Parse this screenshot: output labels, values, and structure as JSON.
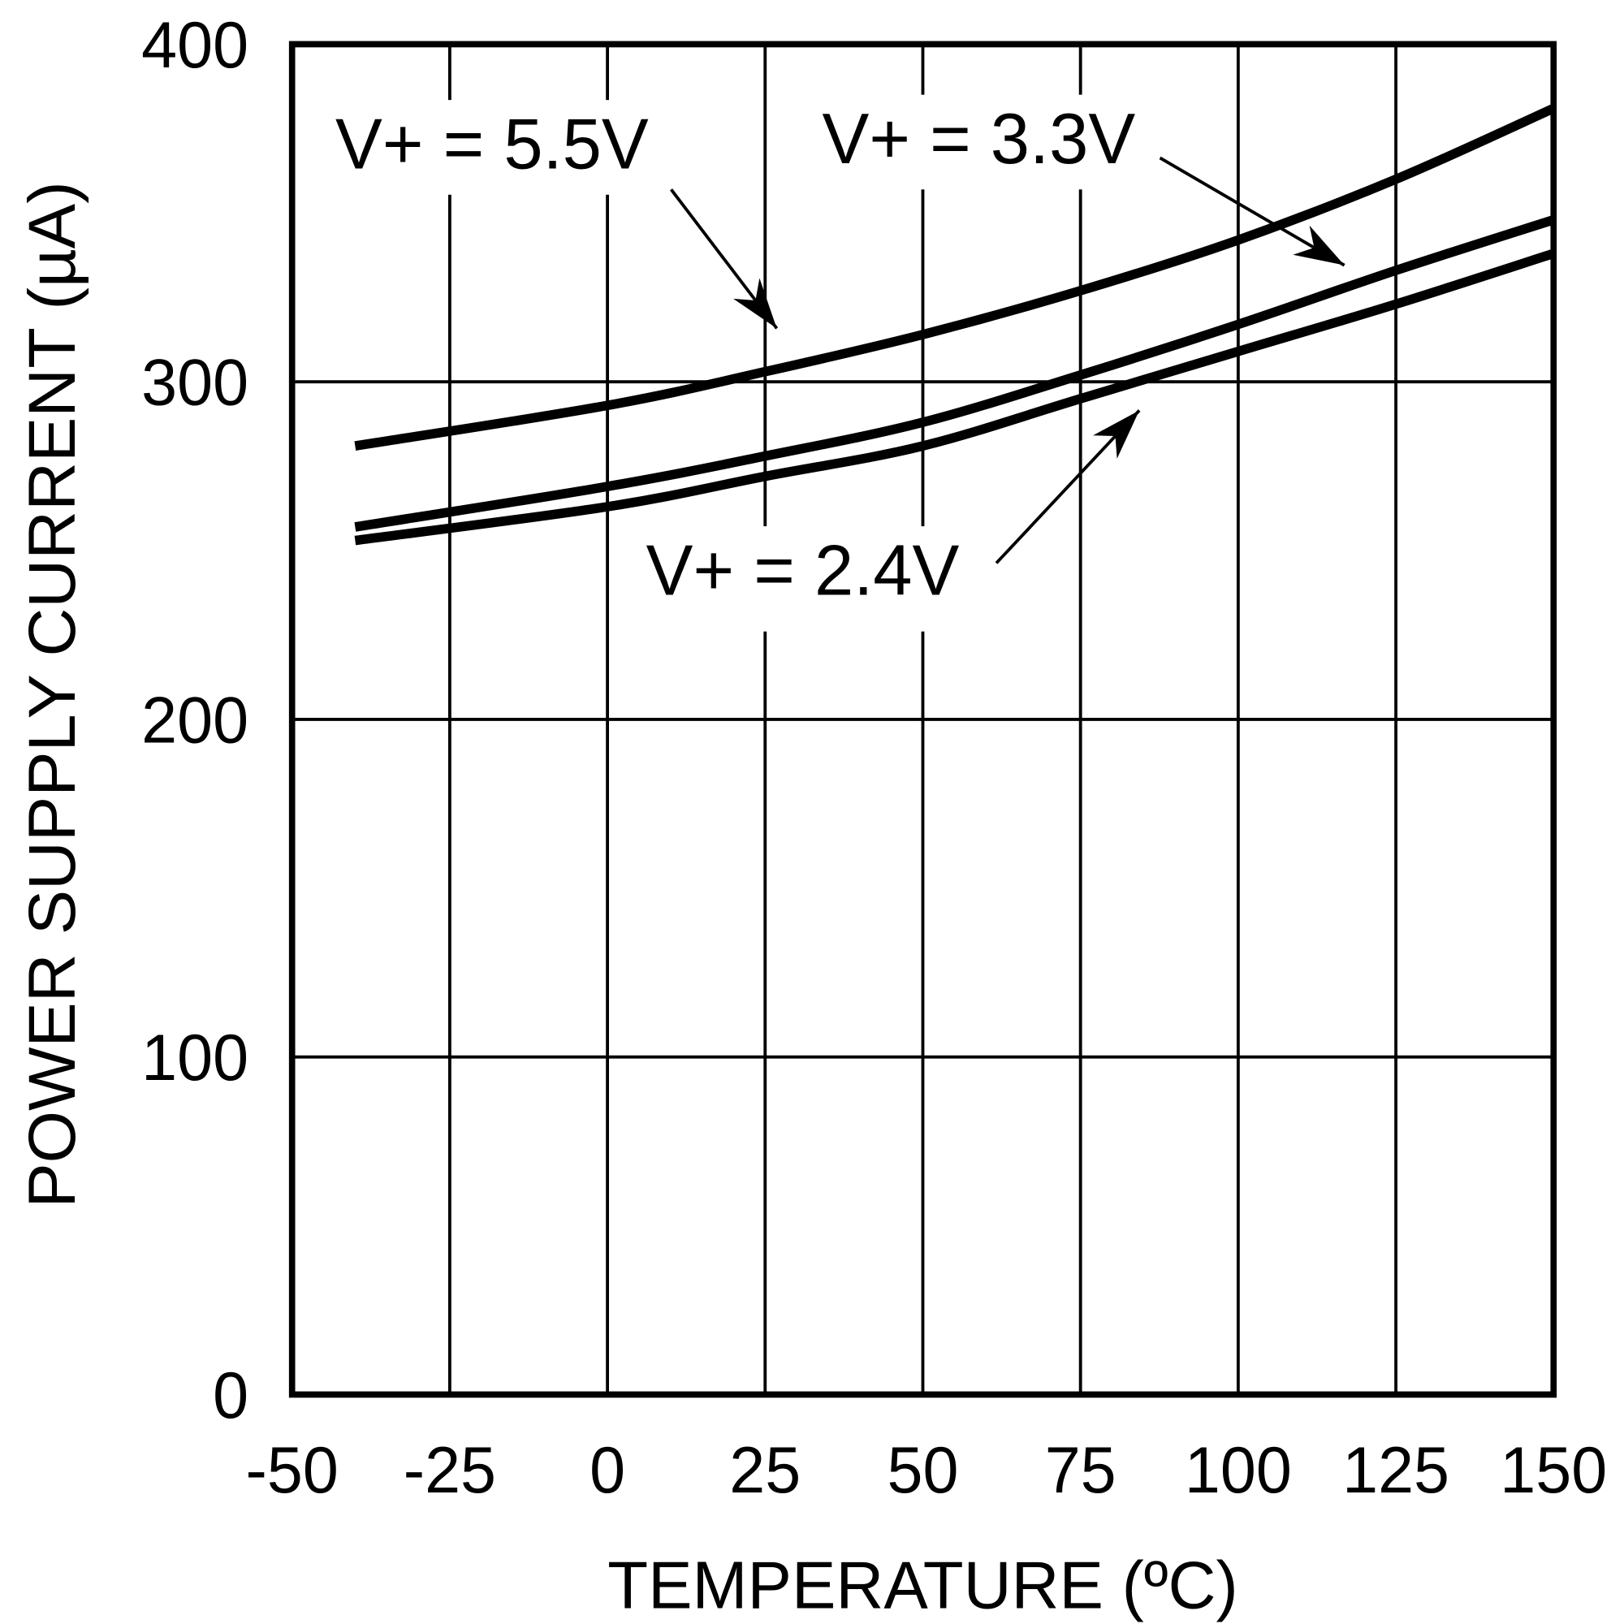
{
  "chart_data": {
    "type": "line",
    "title": "",
    "xlabel": "TEMPERATURE (ºC)",
    "ylabel": "POWER SUPPLY CURRENT (µA)",
    "xlim": [
      -50,
      150
    ],
    "ylim": [
      0,
      400
    ],
    "xticks": [
      "-50",
      "-25",
      "0",
      "25",
      "50",
      "75",
      "100",
      "125",
      "150"
    ],
    "yticks": [
      "0",
      "100",
      "200",
      "300",
      "400"
    ],
    "grid": true,
    "legend": "none",
    "x": [
      -40,
      0,
      25,
      50,
      75,
      100,
      125,
      150
    ],
    "series": [
      {
        "name": "V+ = 5.5V",
        "values": [
          281,
          293,
          303,
          314,
          327,
          342,
          360,
          381
        ]
      },
      {
        "name": "V+ = 3.3V",
        "values": [
          257,
          269,
          278,
          288,
          302,
          317,
          333,
          348
        ]
      },
      {
        "name": "V+ = 2.4V",
        "values": [
          253,
          263,
          272,
          281,
          295,
          309,
          323,
          338
        ]
      }
    ],
    "line_color": "#000000"
  }
}
